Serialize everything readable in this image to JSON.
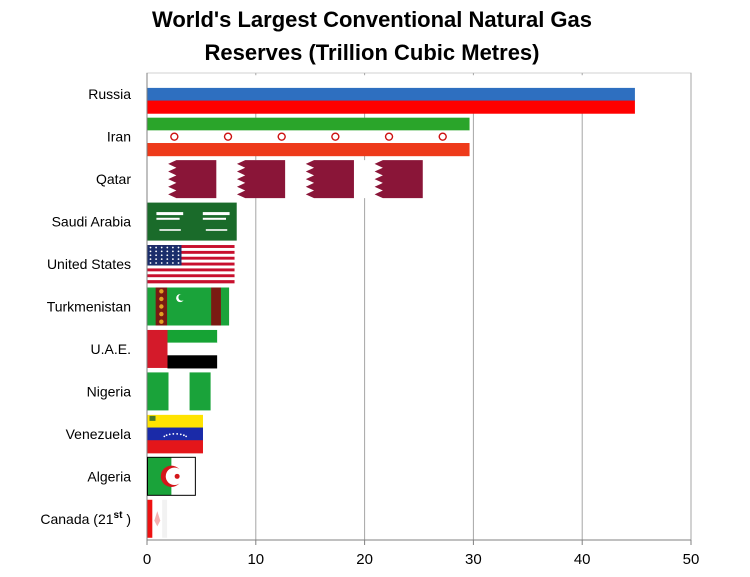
{
  "chart_data": {
    "type": "bar",
    "orientation": "horizontal",
    "title_lines": [
      "World's Largest  Conventional Natural Gas",
      "Reserves (Trillion  Cubic Metres)"
    ],
    "categories": [
      "Russia",
      "Iran",
      "Qatar",
      "Saudi Arabia",
      "United States",
      "Turkmenistan",
      "U.A.E.",
      "Nigeria",
      "Venezuela",
      "Algeria",
      "Canada (21st )"
    ],
    "values": [
      44.8,
      29.6,
      25.3,
      8.2,
      8.0,
      7.5,
      6.4,
      5.8,
      5.1,
      4.4,
      1.8
    ],
    "bar_fill": "country flags",
    "xlim": [
      0,
      50
    ],
    "xticks": [
      0,
      10,
      20,
      30,
      40,
      50
    ],
    "grid": "vertical",
    "legend": "none"
  },
  "colors": {
    "russia_white": "#ffffff",
    "russia_blue": "#2e6fc0",
    "russia_red": "#ff0000",
    "iran_green": "#2aa52a",
    "iran_red": "#ee3a1a",
    "qatar_maroon": "#8a1538",
    "saudi_green": "#1a6b2a",
    "usa_red": "#c8102e",
    "usa_blue": "#1a2d6b",
    "turkmen_green": "#1aa33a",
    "turkmen_carpet": "#7a1a12",
    "uae_red": "#d41a2a",
    "uae_green": "#16a334",
    "nigeria_green": "#1aa33a",
    "venezuela_yellow": "#ffe300",
    "venezuela_blue": "#1a2aa8",
    "venezuela_red": "#e4161a",
    "algeria_green": "#1aa33a",
    "algeria_red": "#d4161a",
    "canada_red": "#ee1111",
    "grid": "#a6a6a6",
    "axis": "#808080"
  }
}
